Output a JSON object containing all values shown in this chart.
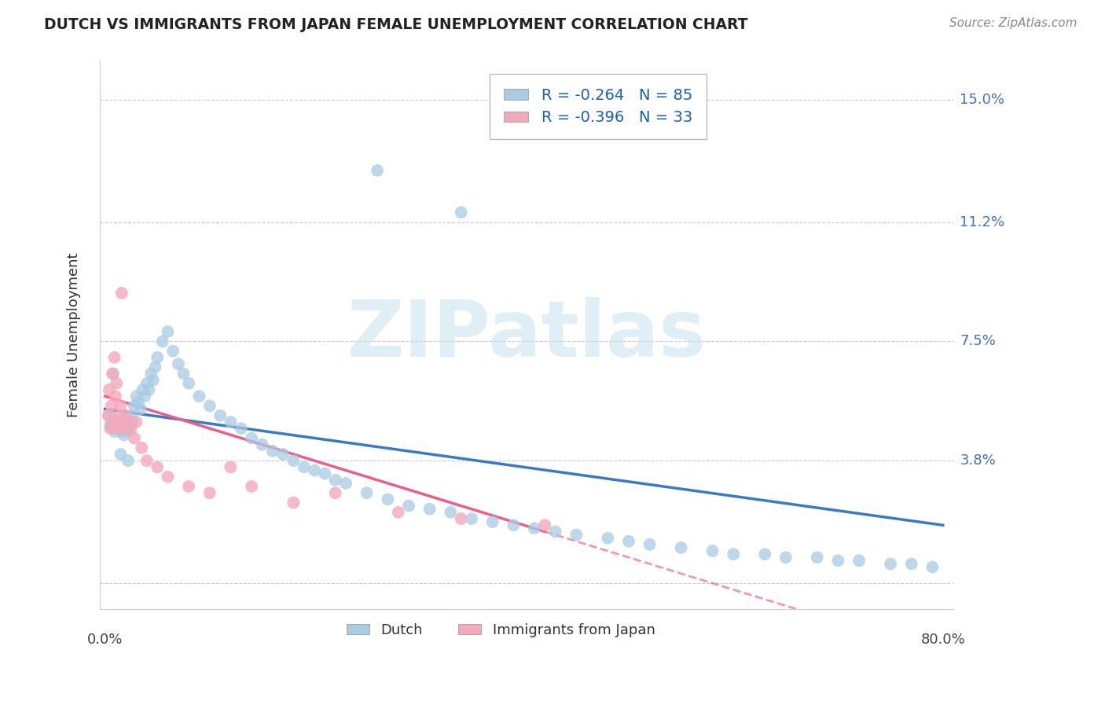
{
  "title": "DUTCH VS IMMIGRANTS FROM JAPAN FEMALE UNEMPLOYMENT CORRELATION CHART",
  "source": "Source: ZipAtlas.com",
  "ylabel": "Female Unemployment",
  "yticks": [
    0.0,
    0.038,
    0.075,
    0.112,
    0.15
  ],
  "ytick_labels": [
    "",
    "3.8%",
    "7.5%",
    "11.2%",
    "15.0%"
  ],
  "xlim": [
    0.0,
    0.8
  ],
  "ylim": [
    -0.008,
    0.162
  ],
  "watermark": "ZIPatlas",
  "dutch_color": "#a8cce4",
  "japan_color": "#f4a8bc",
  "dutch_line_color": "#3a7abf",
  "japan_line_color": "#e8608a",
  "background_color": "#ffffff",
  "grid_color": "#cccccc",
  "dutch_scatter": {
    "x": [
      0.004,
      0.005,
      0.006,
      0.007,
      0.008,
      0.009,
      0.01,
      0.011,
      0.012,
      0.013,
      0.014,
      0.015,
      0.016,
      0.017,
      0.018,
      0.019,
      0.02,
      0.021,
      0.022,
      0.023,
      0.025,
      0.026,
      0.028,
      0.03,
      0.032,
      0.034,
      0.036,
      0.038,
      0.04,
      0.042,
      0.044,
      0.046,
      0.048,
      0.05,
      0.055,
      0.06,
      0.065,
      0.07,
      0.075,
      0.08,
      0.09,
      0.1,
      0.11,
      0.12,
      0.13,
      0.14,
      0.15,
      0.16,
      0.17,
      0.18,
      0.19,
      0.2,
      0.21,
      0.22,
      0.23,
      0.25,
      0.27,
      0.29,
      0.31,
      0.33,
      0.35,
      0.37,
      0.39,
      0.41,
      0.43,
      0.45,
      0.48,
      0.5,
      0.52,
      0.55,
      0.58,
      0.6,
      0.63,
      0.65,
      0.68,
      0.7,
      0.72,
      0.75,
      0.77,
      0.79,
      0.34,
      0.26,
      0.015,
      0.022,
      0.008
    ],
    "y": [
      0.052,
      0.049,
      0.05,
      0.048,
      0.051,
      0.047,
      0.05,
      0.049,
      0.048,
      0.05,
      0.049,
      0.047,
      0.05,
      0.048,
      0.046,
      0.049,
      0.05,
      0.048,
      0.047,
      0.049,
      0.052,
      0.05,
      0.055,
      0.058,
      0.056,
      0.054,
      0.06,
      0.058,
      0.062,
      0.06,
      0.065,
      0.063,
      0.067,
      0.07,
      0.075,
      0.078,
      0.072,
      0.068,
      0.065,
      0.062,
      0.058,
      0.055,
      0.052,
      0.05,
      0.048,
      0.045,
      0.043,
      0.041,
      0.04,
      0.038,
      0.036,
      0.035,
      0.034,
      0.032,
      0.031,
      0.028,
      0.026,
      0.024,
      0.023,
      0.022,
      0.02,
      0.019,
      0.018,
      0.017,
      0.016,
      0.015,
      0.014,
      0.013,
      0.012,
      0.011,
      0.01,
      0.009,
      0.009,
      0.008,
      0.008,
      0.007,
      0.007,
      0.006,
      0.006,
      0.005,
      0.115,
      0.128,
      0.04,
      0.038,
      0.065
    ]
  },
  "japan_scatter": {
    "x": [
      0.003,
      0.004,
      0.005,
      0.006,
      0.007,
      0.008,
      0.009,
      0.01,
      0.011,
      0.012,
      0.013,
      0.014,
      0.015,
      0.016,
      0.018,
      0.02,
      0.022,
      0.025,
      0.028,
      0.03,
      0.035,
      0.04,
      0.05,
      0.06,
      0.08,
      0.1,
      0.12,
      0.14,
      0.18,
      0.22,
      0.28,
      0.34,
      0.42
    ],
    "y": [
      0.052,
      0.06,
      0.048,
      0.055,
      0.065,
      0.05,
      0.07,
      0.058,
      0.062,
      0.05,
      0.048,
      0.052,
      0.055,
      0.09,
      0.048,
      0.052,
      0.05,
      0.048,
      0.045,
      0.05,
      0.042,
      0.038,
      0.036,
      0.033,
      0.03,
      0.028,
      0.036,
      0.03,
      0.025,
      0.028,
      0.022,
      0.02,
      0.018
    ]
  },
  "dutch_line": {
    "x0": 0.0,
    "x1": 0.8,
    "y0": 0.054,
    "y1": 0.018
  },
  "japan_line_solid": {
    "x0": 0.0,
    "x1": 0.42,
    "y0": 0.058,
    "y1": 0.016
  },
  "japan_line_dashed": {
    "x0": 0.42,
    "x1": 0.68,
    "y0": 0.016,
    "y1": -0.01
  }
}
